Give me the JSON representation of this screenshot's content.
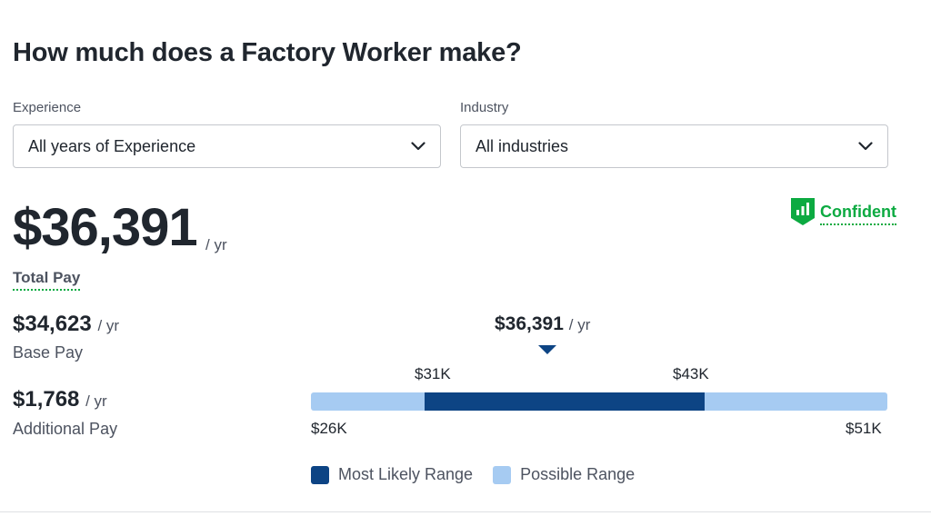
{
  "title": "How much does a Factory Worker make?",
  "filters": {
    "experience": {
      "label": "Experience",
      "value": "All years of Experience"
    },
    "industry": {
      "label": "Industry",
      "value": "All industries"
    }
  },
  "total_pay": {
    "amount": "$36,391",
    "per": "/ yr",
    "label": "Total Pay"
  },
  "confidence": {
    "label": "Confident",
    "color": "#0caa41",
    "icon": "bar-chart-shield-icon"
  },
  "base_pay": {
    "amount": "$34,623",
    "per": "/ yr",
    "label": "Base Pay"
  },
  "additional_pay": {
    "amount": "$1,768",
    "per": "/ yr",
    "label": "Additional Pay"
  },
  "chart_data": {
    "type": "bar",
    "marker": {
      "value": 36391,
      "label": "$36,391",
      "per": "/ yr"
    },
    "likely_range": {
      "min": 31000,
      "max": 43000,
      "min_label": "$31K",
      "max_label": "$43K",
      "color": "#0d4484"
    },
    "possible_range": {
      "min": 26000,
      "max": 51000,
      "min_label": "$26K",
      "max_label": "$51K",
      "color": "#a6cbf2"
    },
    "legend": [
      "Most Likely Range",
      "Possible Range"
    ]
  }
}
